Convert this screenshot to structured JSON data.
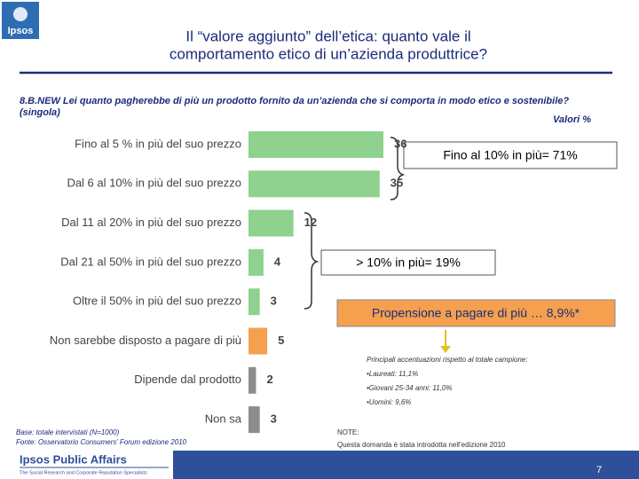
{
  "chart_data": {
    "type": "bar",
    "orientation": "horizontal",
    "title": [
      "Il “valore aggiunto” dell’etica: quanto vale il",
      "comportamento etico di un’azienda produttrice?"
    ],
    "subtitle": [
      "8.B.NEW Lei quanto pagherebbe di più un prodotto fornito da un’azienda che si comporta in modo etico e sostenibile?",
      "(singola)"
    ],
    "unit_label": "Valori %",
    "categories": [
      "Fino al 5 % in più del suo prezzo",
      "Dal 6 al 10% in più del suo prezzo",
      "Dal 11 al 20% in più del suo prezzo",
      "Dal 21 al 50% in più del suo prezzo",
      "Oltre il 50% in più del suo prezzo",
      "Non sarebbe disposto a pagare di più",
      "Dipende dal prodotto",
      "Non sa"
    ],
    "values": [
      36,
      35,
      12,
      4,
      3,
      5,
      2,
      3
    ],
    "colors": [
      "#8fd18f",
      "#8fd18f",
      "#8fd18f",
      "#8fd18f",
      "#8fd18f",
      "#f5a04e",
      "#8c8c8c",
      "#8c8c8c"
    ],
    "annotations": [
      "Fino al 10% in più= 71%",
      "> 10% in più=  19%",
      "Propensione a pagare di più … 8,9%*"
    ],
    "notes": [
      "Principali accentuazioni rispetto al totale campione:",
      "•Laureati: 11,1%",
      "•Giovani 25-34 anni: 11,0%",
      "•Uomini: 9,6%"
    ],
    "footnote": [
      "Base: totale intervistati (N=1000)",
      "Fonte: Osservatorio Consumers’ Forum edizione 2010"
    ],
    "note_box": [
      "NOTE:",
      "Questa domanda è stata introdotta nell’edizione 2010"
    ]
  },
  "branding": {
    "logo": "Ipsos",
    "division": "Ipsos Public Affairs",
    "tagline": "The Social Research and Corporate Reputation Specialists",
    "page": "7"
  }
}
